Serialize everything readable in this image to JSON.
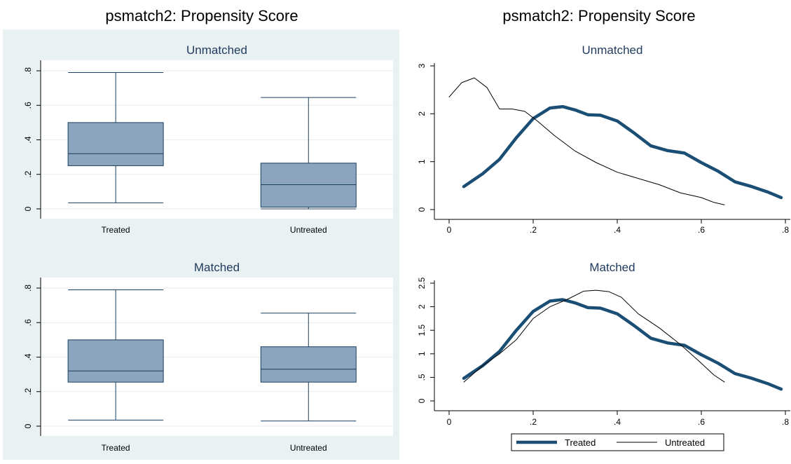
{
  "chart_data": [
    {
      "type": "box",
      "title": "psmatch2: Propensity Score",
      "panels": [
        {
          "subtitle": "Unmatched",
          "categories": [
            "Treated",
            "Untreated"
          ],
          "boxes": [
            {
              "min": 0.035,
              "q1": 0.25,
              "median": 0.32,
              "q3": 0.5,
              "max": 0.79
            },
            {
              "min": 0.0,
              "q1": 0.01,
              "median": 0.14,
              "q3": 0.265,
              "max": 0.645
            }
          ],
          "ylim": [
            0,
            0.8
          ],
          "yticks": [
            {
              "v": 0,
              "label": "0"
            },
            {
              "v": 0.2,
              "label": ".2"
            },
            {
              "v": 0.4,
              "label": ".4"
            },
            {
              "v": 0.6,
              "label": ".6"
            },
            {
              "v": 0.8,
              "label": ".8"
            }
          ]
        },
        {
          "subtitle": "Matched",
          "categories": [
            "Treated",
            "Untreated"
          ],
          "boxes": [
            {
              "min": 0.035,
              "q1": 0.255,
              "median": 0.32,
              "q3": 0.5,
              "max": 0.79
            },
            {
              "min": 0.03,
              "q1": 0.255,
              "median": 0.33,
              "q3": 0.46,
              "max": 0.655
            }
          ],
          "ylim": [
            0,
            0.8
          ],
          "yticks": [
            {
              "v": 0,
              "label": "0"
            },
            {
              "v": 0.2,
              "label": ".2"
            },
            {
              "v": 0.4,
              "label": ".4"
            },
            {
              "v": 0.6,
              "label": ".6"
            },
            {
              "v": 0.8,
              "label": ".8"
            }
          ]
        }
      ]
    },
    {
      "type": "line",
      "title": "psmatch2: Propensity Score",
      "legend": {
        "placement": "bottom",
        "entries": [
          "Treated",
          "Untreated"
        ]
      },
      "panels": [
        {
          "subtitle": "Unmatched",
          "xlim": [
            0,
            0.8
          ],
          "ylim": [
            0,
            3
          ],
          "xticks": [
            {
              "v": 0,
              "label": "0"
            },
            {
              "v": 0.2,
              "label": ".2"
            },
            {
              "v": 0.4,
              "label": ".4"
            },
            {
              "v": 0.6,
              "label": ".6"
            },
            {
              "v": 0.8,
              "label": ".8"
            }
          ],
          "yticks": [
            {
              "v": 0,
              "label": "0"
            },
            {
              "v": 1,
              "label": "1"
            },
            {
              "v": 2,
              "label": "2"
            },
            {
              "v": 3,
              "label": "3"
            }
          ],
          "series": [
            {
              "name": "Treated",
              "x": [
                0.035,
                0.08,
                0.12,
                0.16,
                0.2,
                0.24,
                0.27,
                0.3,
                0.33,
                0.36,
                0.4,
                0.44,
                0.48,
                0.52,
                0.56,
                0.6,
                0.64,
                0.68,
                0.72,
                0.76,
                0.79
              ],
              "y": [
                0.48,
                0.75,
                1.05,
                1.5,
                1.9,
                2.12,
                2.15,
                2.08,
                1.98,
                1.97,
                1.85,
                1.6,
                1.33,
                1.23,
                1.18,
                0.98,
                0.8,
                0.58,
                0.48,
                0.36,
                0.25
              ]
            },
            {
              "name": "Untreated",
              "x": [
                0.0,
                0.03,
                0.06,
                0.09,
                0.12,
                0.15,
                0.18,
                0.21,
                0.25,
                0.3,
                0.35,
                0.4,
                0.45,
                0.5,
                0.55,
                0.6,
                0.63,
                0.655
              ],
              "y": [
                2.35,
                2.65,
                2.75,
                2.55,
                2.1,
                2.1,
                2.05,
                1.85,
                1.55,
                1.22,
                0.98,
                0.78,
                0.65,
                0.52,
                0.35,
                0.25,
                0.15,
                0.1
              ]
            }
          ]
        },
        {
          "subtitle": "Matched",
          "xlim": [
            0,
            0.8
          ],
          "ylim": [
            0,
            2.5
          ],
          "xticks": [
            {
              "v": 0,
              "label": "0"
            },
            {
              "v": 0.2,
              "label": ".2"
            },
            {
              "v": 0.4,
              "label": ".4"
            },
            {
              "v": 0.6,
              "label": ".6"
            },
            {
              "v": 0.8,
              "label": ".8"
            }
          ],
          "yticks": [
            {
              "v": 0,
              "label": "0"
            },
            {
              "v": 0.5,
              "label": ".5"
            },
            {
              "v": 1,
              "label": "1"
            },
            {
              "v": 1.5,
              "label": "1.5"
            },
            {
              "v": 2,
              "label": "2"
            },
            {
              "v": 2.5,
              "label": "2.5"
            }
          ],
          "series": [
            {
              "name": "Treated",
              "x": [
                0.035,
                0.08,
                0.12,
                0.16,
                0.2,
                0.24,
                0.27,
                0.3,
                0.33,
                0.36,
                0.4,
                0.44,
                0.48,
                0.52,
                0.56,
                0.6,
                0.64,
                0.68,
                0.72,
                0.76,
                0.79
              ],
              "y": [
                0.48,
                0.75,
                1.05,
                1.5,
                1.9,
                2.12,
                2.15,
                2.08,
                1.98,
                1.97,
                1.85,
                1.6,
                1.33,
                1.23,
                1.18,
                0.98,
                0.8,
                0.58,
                0.48,
                0.36,
                0.25
              ]
            },
            {
              "name": "Untreated",
              "x": [
                0.035,
                0.08,
                0.12,
                0.16,
                0.2,
                0.24,
                0.28,
                0.32,
                0.35,
                0.38,
                0.41,
                0.45,
                0.5,
                0.55,
                0.6,
                0.63,
                0.655
              ],
              "y": [
                0.4,
                0.75,
                1.0,
                1.3,
                1.75,
                2.0,
                2.15,
                2.33,
                2.35,
                2.32,
                2.2,
                1.85,
                1.55,
                1.2,
                0.8,
                0.55,
                0.4
              ]
            }
          ]
        }
      ]
    }
  ]
}
